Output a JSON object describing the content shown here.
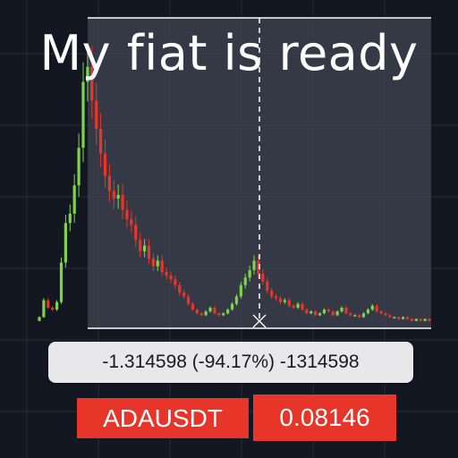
{
  "title": "My fiat is ready",
  "measurement": {
    "text": "-1.314598 (-94.17%) -1314598",
    "change_abs": -1.314598,
    "change_pct": -94.17,
    "ticks": -1314598
  },
  "ticker": {
    "symbol": "ADAUSDT",
    "separator": "-",
    "price": "0.08146"
  },
  "colors": {
    "background": "#131722",
    "grid": "#2a2e39",
    "up": "#7dd34c",
    "down": "#e8352a",
    "selection": "#3c404c",
    "crosshair": "#ffffff",
    "measure_bg": "#e8e8ea",
    "badge": "#e8352a"
  },
  "chart_data": {
    "type": "candlestick",
    "title": "",
    "xlabel": "",
    "ylabel": "",
    "ylim": [
      0,
      1.45
    ],
    "grid": true,
    "x": [
      1,
      2,
      3,
      4,
      5,
      6,
      7,
      8,
      9,
      10,
      11,
      12,
      13,
      14,
      15,
      16,
      17,
      18,
      19,
      20,
      21,
      22,
      23,
      24,
      25,
      26,
      27,
      28,
      29,
      30,
      31,
      32,
      33,
      34,
      35,
      36,
      37,
      38,
      39,
      40,
      41,
      42,
      43,
      44,
      45,
      46,
      47,
      48,
      49,
      50,
      51,
      52,
      53,
      54,
      55,
      56,
      57,
      58,
      59,
      60,
      61,
      62,
      63,
      64,
      65,
      66,
      67,
      68,
      69,
      70,
      71,
      72,
      73,
      74,
      75,
      76,
      77,
      78,
      79,
      80,
      81,
      82,
      83,
      84,
      85,
      86,
      87,
      88,
      89,
      90
    ],
    "close": [
      0.05,
      0.14,
      0.1,
      0.09,
      0.13,
      0.34,
      0.55,
      0.6,
      0.75,
      0.95,
      1.3,
      1.38,
      1.2,
      1.05,
      0.92,
      0.8,
      0.72,
      0.68,
      0.7,
      0.62,
      0.57,
      0.54,
      0.46,
      0.4,
      0.43,
      0.36,
      0.32,
      0.35,
      0.29,
      0.27,
      0.25,
      0.22,
      0.18,
      0.16,
      0.12,
      0.09,
      0.07,
      0.06,
      0.08,
      0.1,
      0.07,
      0.06,
      0.07,
      0.09,
      0.12,
      0.16,
      0.22,
      0.26,
      0.3,
      0.35,
      0.28,
      0.24,
      0.19,
      0.16,
      0.15,
      0.13,
      0.14,
      0.11,
      0.1,
      0.12,
      0.09,
      0.07,
      0.08,
      0.06,
      0.07,
      0.09,
      0.08,
      0.06,
      0.08,
      0.1,
      0.07,
      0.06,
      0.06,
      0.05,
      0.07,
      0.09,
      0.11,
      0.08,
      0.07,
      0.06,
      0.05,
      0.05,
      0.04,
      0.05,
      0.04,
      0.03,
      0.04,
      0.03,
      0.04,
      0.03
    ],
    "selection_end_close": 0.08146,
    "change_pct": -94.17
  }
}
